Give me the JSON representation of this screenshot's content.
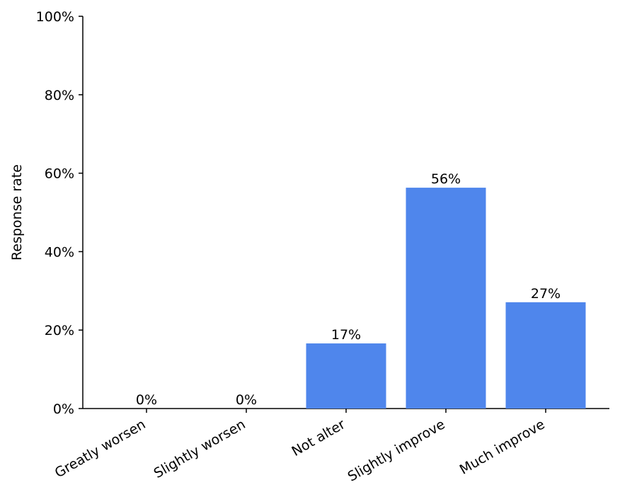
{
  "chart_data": {
    "type": "bar",
    "y_label": "Response rate",
    "categories": [
      "Greatly worsen",
      "Slightly worsen",
      "Not alter",
      "Slightly improve",
      "Much improve"
    ],
    "values": [
      0,
      0,
      16.6,
      56.3,
      27.1
    ],
    "value_labels": [
      "0%",
      "0%",
      "17%",
      "56%",
      "27%"
    ],
    "color": "#4f86ec",
    "ylim": [
      0,
      100
    ],
    "yticks": [
      {
        "value": 0,
        "label": "0%"
      },
      {
        "value": 20,
        "label": "20%"
      },
      {
        "value": 40,
        "label": "40%"
      },
      {
        "value": 60,
        "label": "60%"
      },
      {
        "value": 80,
        "label": "80%"
      },
      {
        "value": 100,
        "label": "100%"
      }
    ],
    "grid": false
  }
}
